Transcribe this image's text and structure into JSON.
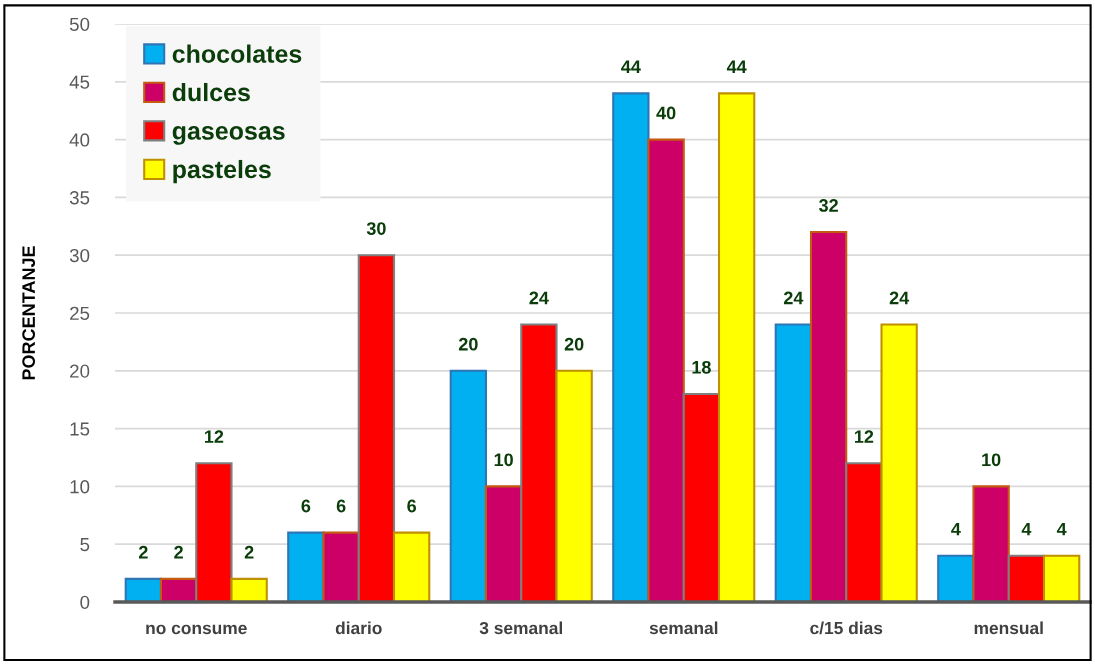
{
  "chart_data": {
    "type": "bar",
    "ylabel": "PORCENTANJE",
    "categories": [
      "no consume",
      "diario",
      "3 semanal",
      "semanal",
      "c/15 dias",
      "mensual"
    ],
    "series": [
      {
        "name": "chocolates",
        "color": "#00b0f0",
        "values": [
          2,
          6,
          20,
          44,
          24,
          4
        ]
      },
      {
        "name": "dulces",
        "color": "#cc0066",
        "values": [
          2,
          6,
          10,
          40,
          32,
          10
        ]
      },
      {
        "name": "gaseosas",
        "color": "#ff0000",
        "values": [
          12,
          30,
          24,
          18,
          12,
          4
        ]
      },
      {
        "name": "pasteles",
        "color": "#ffff00",
        "values": [
          2,
          6,
          20,
          44,
          24,
          4
        ]
      }
    ],
    "ylim": [
      0,
      50
    ],
    "yticks": [
      0,
      5,
      10,
      15,
      20,
      25,
      30,
      35,
      40,
      45,
      50
    ],
    "grid": "y",
    "legend": "top left",
    "data_labels": true
  }
}
